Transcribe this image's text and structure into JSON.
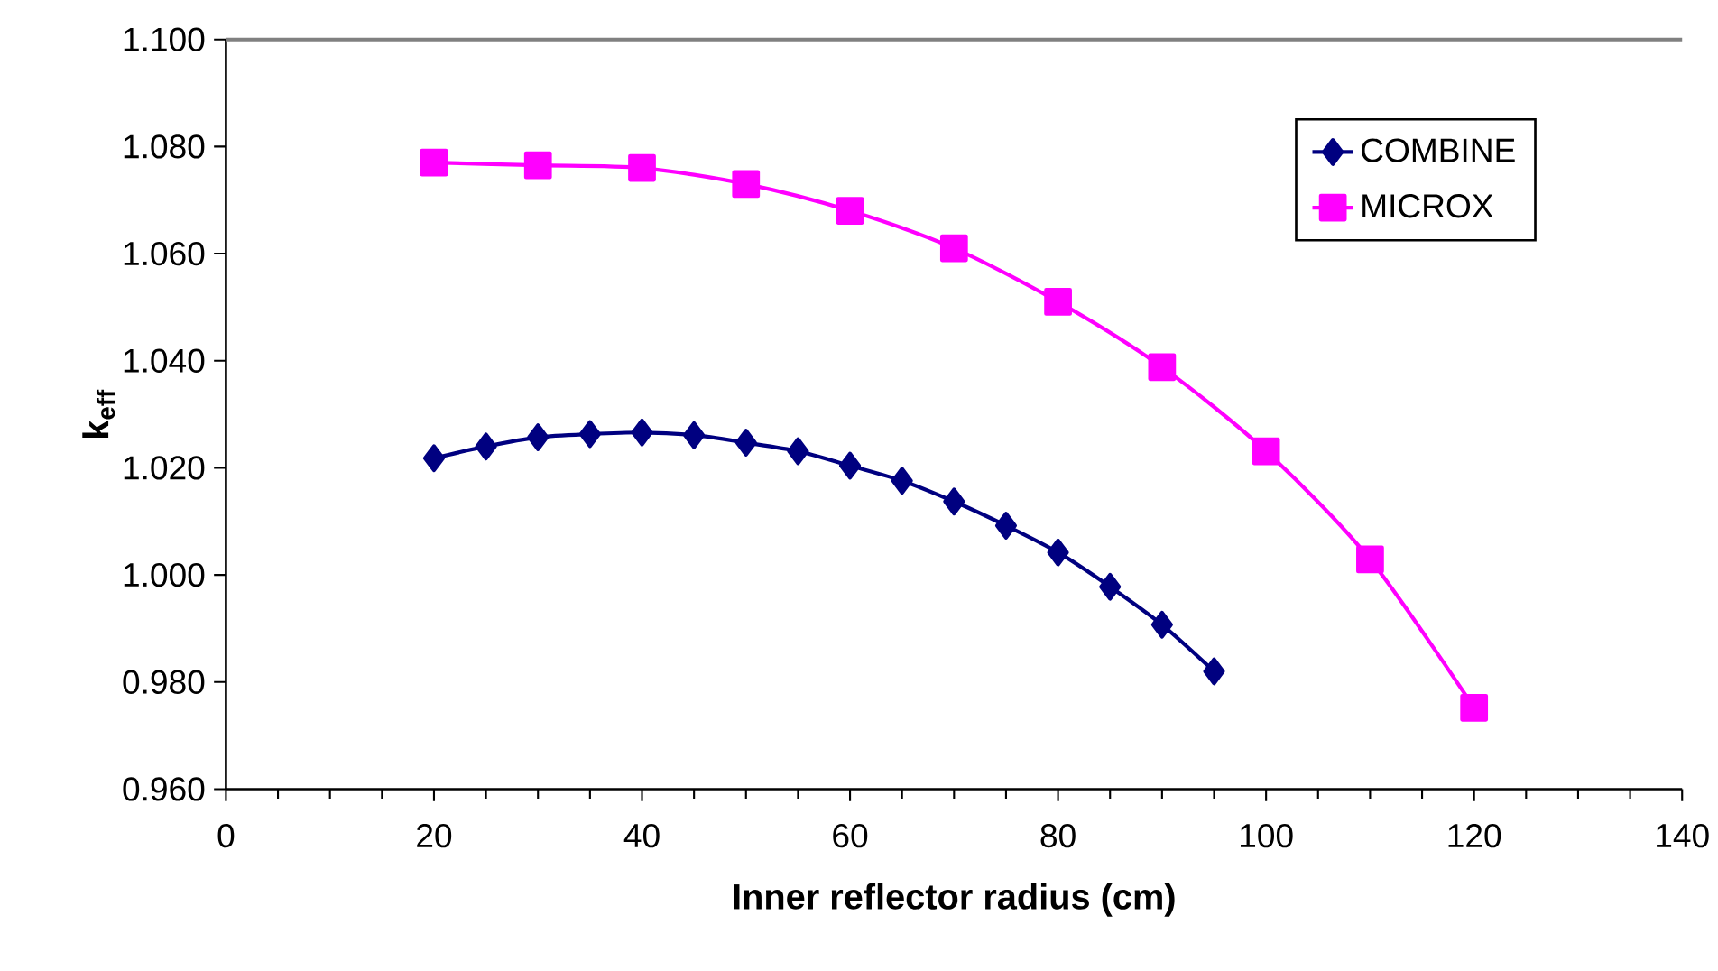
{
  "chart_data": {
    "type": "line",
    "xlabel": "Inner reflector radius (cm)",
    "ylabel": "k$_{eff}$",
    "xlim": [
      0,
      140
    ],
    "xticks": [
      0,
      20,
      40,
      60,
      80,
      100,
      120,
      140
    ],
    "ylim": [
      0.96,
      1.1
    ],
    "yticks": [
      {
        "value": 0.96,
        "label": "0.960"
      },
      {
        "value": 0.98,
        "label": "0.980"
      },
      {
        "value": 1.0,
        "label": "1.000"
      },
      {
        "value": 1.02,
        "label": "1.020"
      },
      {
        "value": 1.04,
        "label": "1.040"
      },
      {
        "value": 1.06,
        "label": "1.060"
      },
      {
        "value": 1.08,
        "label": "1.080"
      },
      {
        "value": 1.1,
        "label": "1.100"
      }
    ],
    "grid": false,
    "legend": "top right",
    "line_style": "solid",
    "series": [
      {
        "name": "COMBINE",
        "color": "#000080",
        "marker": "diamond",
        "x": [
          20,
          25,
          30,
          35,
          40,
          45,
          50,
          55,
          60,
          65,
          70,
          75,
          80,
          85,
          90,
          95
        ],
        "values": [
          1.0218,
          1.024,
          1.0257,
          1.0263,
          1.0266,
          1.0261,
          1.0247,
          1.0231,
          1.0204,
          1.0176,
          1.0137,
          1.0092,
          1.0042,
          0.9978,
          0.9907,
          0.982
        ]
      },
      {
        "name": "MICROX",
        "color": "#ff00ff",
        "marker": "square",
        "x": [
          20,
          30,
          40,
          50,
          60,
          70,
          80,
          90,
          100,
          110,
          120
        ],
        "values": [
          1.077,
          1.0765,
          1.076,
          1.073,
          1.068,
          1.061,
          1.051,
          1.0388,
          1.0231,
          1.0029,
          0.9752
        ]
      }
    ]
  }
}
